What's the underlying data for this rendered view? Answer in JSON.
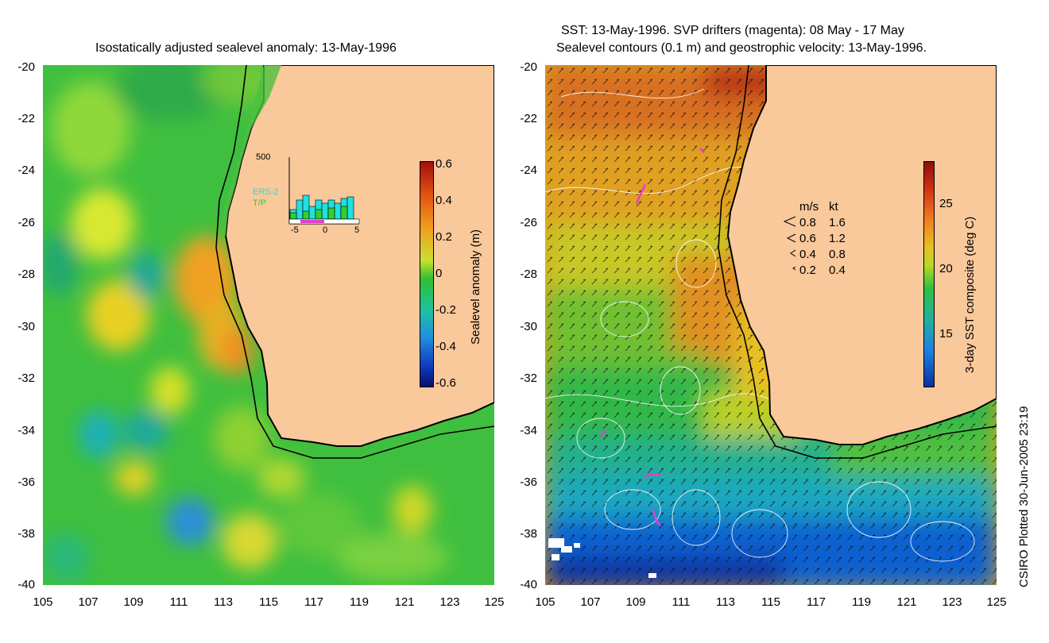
{
  "left_panel": {
    "title": "Isostatically adjusted sealevel anomaly: 13-May-1996",
    "y_ticks": [
      "-20",
      "-22",
      "-24",
      "-26",
      "-28",
      "-30",
      "-32",
      "-34",
      "-36",
      "-38",
      "-40"
    ],
    "x_ticks": [
      "105",
      "107",
      "109",
      "111",
      "113",
      "115",
      "117",
      "119",
      "121",
      "123",
      "125"
    ],
    "colorbar": {
      "label": "Sealevel anomaly (m)",
      "ticks": [
        "0.6",
        "0.4",
        "0.2",
        "0",
        "-0.2",
        "-0.4",
        "-0.6"
      ]
    },
    "inset": {
      "y_max": "500",
      "series": [
        "ERS-2",
        "T/P"
      ],
      "x_ticks": [
        "-5",
        "0",
        "5"
      ]
    }
  },
  "right_panel": {
    "title_line1": "SST: 13-May-1996. SVP drifters (magenta): 08 May - 17 May",
    "title_line2": "Sealevel contours (0.1 m) and geostrophic velocity: 13-May-1996.",
    "y_ticks": [
      "-20",
      "-22",
      "-24",
      "-26",
      "-28",
      "-30",
      "-32",
      "-34",
      "-36",
      "-38",
      "-40"
    ],
    "x_ticks": [
      "105",
      "107",
      "109",
      "111",
      "113",
      "115",
      "117",
      "119",
      "121",
      "123",
      "125"
    ],
    "colorbar": {
      "label": "3-day SST composite (deg C)",
      "ticks": [
        "25",
        "20",
        "15"
      ]
    },
    "velocity_legend": {
      "header_ms": "m/s",
      "header_kt": "kt",
      "rows": [
        {
          "ms": "0.8",
          "kt": "1.6"
        },
        {
          "ms": "0.6",
          "kt": "1.2"
        },
        {
          "ms": "0.4",
          "kt": "0.8"
        },
        {
          "ms": "0.2",
          "kt": "0.4"
        }
      ]
    }
  },
  "credit": "CSIRO Plotted 30-Jun-2005 23:19",
  "colors": {
    "land": "#f9c89b",
    "coast": "#000000",
    "contour": "#ffffff",
    "drifter": "#e040d0"
  }
}
